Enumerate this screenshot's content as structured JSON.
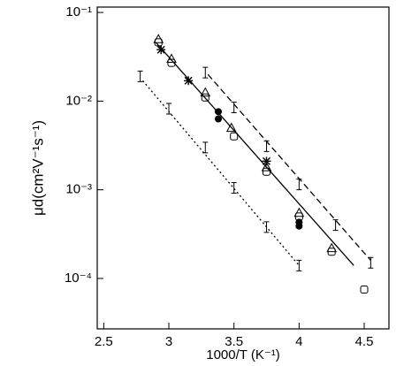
{
  "chart_data": {
    "type": "scatter",
    "xlabel": "1000/T (K⁻¹)",
    "ylabel": "μd(cm²V⁻¹s⁻¹)",
    "xlim": [
      2.45,
      4.69
    ],
    "xticks": [
      2.5,
      3.0,
      3.5,
      4.0,
      4.5
    ],
    "ylim": [
      2.7e-05,
      0.115
    ],
    "log_y": true,
    "yticks": [
      {
        "value": 0.0001,
        "label": "10⁻⁴"
      },
      {
        "value": 0.001,
        "label": "10⁻³"
      },
      {
        "value": 0.01,
        "label": "10⁻²"
      },
      {
        "value": 0.1,
        "label": "10⁻¹"
      }
    ],
    "color": "#000000",
    "series": [
      {
        "marker": "triangle",
        "x": [
          2.92,
          3.02,
          3.28,
          3.48,
          3.75,
          4.0,
          4.25
        ],
        "values": [
          0.05,
          0.03,
          0.0125,
          0.005,
          0.0018,
          0.00055,
          0.00022
        ]
      },
      {
        "marker": "square",
        "x": [
          2.92,
          3.02,
          3.28,
          3.5,
          3.75,
          4.0,
          4.25,
          4.5
        ],
        "values": [
          0.046,
          0.027,
          0.011,
          0.004,
          0.0016,
          0.0005,
          0.0002,
          7.5e-05
        ]
      },
      {
        "marker": "star",
        "x": [
          2.94,
          3.15,
          3.75
        ],
        "values": [
          0.038,
          0.017,
          0.0021
        ]
      },
      {
        "marker": "filled",
        "x": [
          3.38,
          3.38,
          4.0,
          4.0
        ],
        "values": [
          0.0076,
          0.0063,
          0.00043,
          0.00039
        ]
      },
      {
        "marker": "errorbar",
        "x": [
          3.28,
          3.5,
          3.75,
          4.0,
          4.28,
          4.55
        ],
        "values": [
          0.021,
          0.0085,
          0.0031,
          0.00115,
          0.0004,
          0.00015
        ]
      },
      {
        "marker": "errorbar",
        "x": [
          2.78,
          3.0,
          3.28,
          3.5,
          3.75,
          4.0
        ],
        "values": [
          0.019,
          0.0082,
          0.003,
          0.00105,
          0.00038,
          0.00014
        ]
      },
      {
        "line": "solid",
        "x": [
          2.9,
          4.42
        ],
        "values": [
          0.046,
          0.00014
        ]
      },
      {
        "line": "dashed",
        "x": [
          3.3,
          4.55
        ],
        "values": [
          0.02,
          0.00016
        ]
      },
      {
        "line": "dotted",
        "x": [
          2.8,
          4.0
        ],
        "values": [
          0.017,
          0.00014
        ]
      }
    ]
  }
}
